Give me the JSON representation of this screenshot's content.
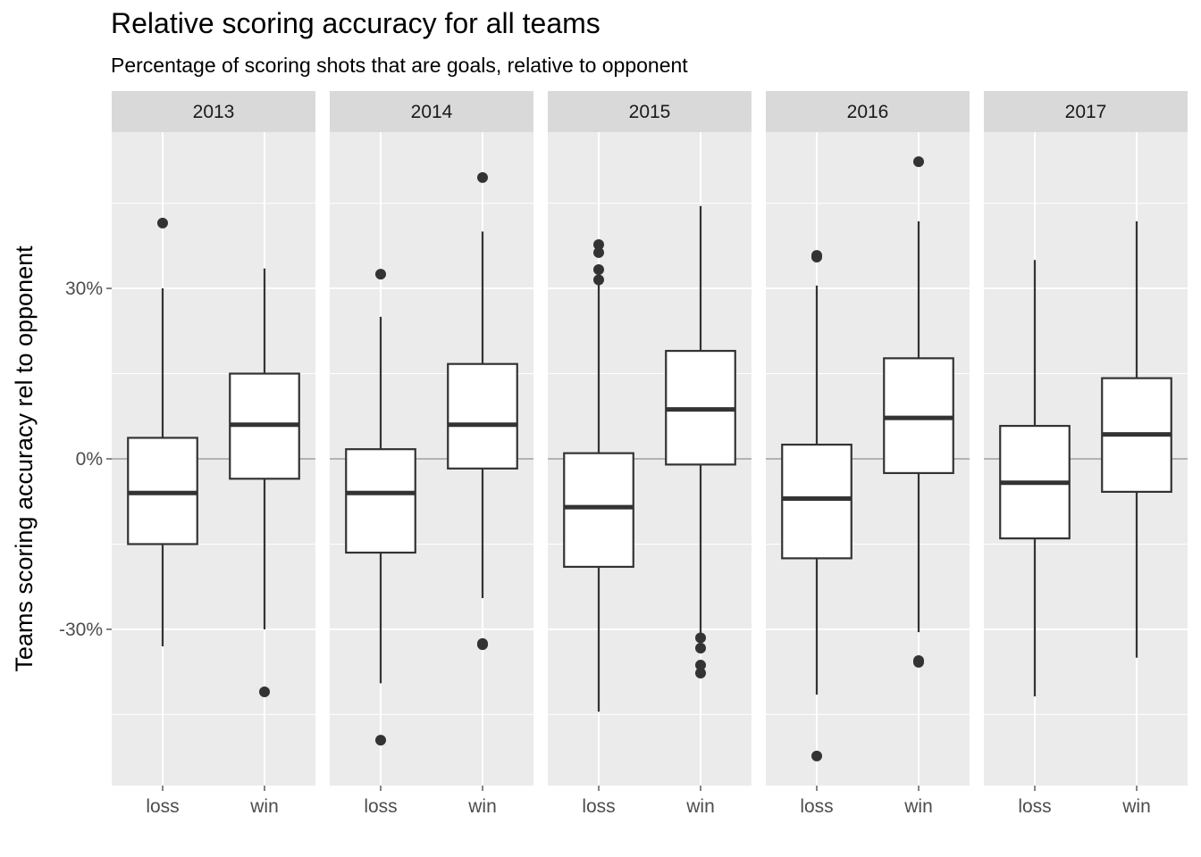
{
  "title": "Relative scoring accuracy for all teams",
  "subtitle": "Percentage of scoring shots that are goals, relative to opponent",
  "chart_data": {
    "type": "boxplot",
    "ylabel": "Teams scoring accuracy rel to opponent",
    "xlabel": "",
    "yticks": [
      {
        "value": -30,
        "label": "-30%"
      },
      {
        "value": 0,
        "label": "0%"
      },
      {
        "value": 30,
        "label": "30%"
      }
    ],
    "ylim": [
      -57.5,
      57.5
    ],
    "reference_line": 0,
    "grid": true,
    "categories": [
      "loss",
      "win"
    ],
    "facets": [
      {
        "label": "2013",
        "boxes": [
          {
            "category": "loss",
            "whisker_low": -33,
            "q1": -15,
            "median": -6,
            "q3": 3.7,
            "whisker_high": 30,
            "outliers": [
              41.5
            ]
          },
          {
            "category": "win",
            "whisker_low": -30,
            "q1": -3.5,
            "median": 6,
            "q3": 15,
            "whisker_high": 33.5,
            "outliers": [
              -41
            ]
          }
        ]
      },
      {
        "label": "2014",
        "boxes": [
          {
            "category": "loss",
            "whisker_low": -39.5,
            "q1": -16.5,
            "median": -6,
            "q3": 1.7,
            "whisker_high": 25,
            "outliers": [
              32.5,
              -49.5
            ]
          },
          {
            "category": "win",
            "whisker_low": -24.5,
            "q1": -1.7,
            "median": 6,
            "q3": 16.7,
            "whisker_high": 40,
            "outliers": [
              49.5,
              -32.5,
              -32.7
            ]
          }
        ]
      },
      {
        "label": "2015",
        "boxes": [
          {
            "category": "loss",
            "whisker_low": -44.5,
            "q1": -19,
            "median": -8.5,
            "q3": 1,
            "whisker_high": 31,
            "outliers": [
              37.7,
              36.3,
              33.3,
              31.5
            ]
          },
          {
            "category": "win",
            "whisker_low": -31,
            "q1": -1,
            "median": 8.7,
            "q3": 19,
            "whisker_high": 44.5,
            "outliers": [
              -31.5,
              -33.3,
              -36.3,
              -37.7
            ]
          }
        ]
      },
      {
        "label": "2016",
        "boxes": [
          {
            "category": "loss",
            "whisker_low": -41.5,
            "q1": -17.5,
            "median": -7,
            "q3": 2.5,
            "whisker_high": 30.5,
            "outliers": [
              35.5,
              35.8,
              -52.3
            ]
          },
          {
            "category": "win",
            "whisker_low": -30.5,
            "q1": -2.5,
            "median": 7.2,
            "q3": 17.7,
            "whisker_high": 41.8,
            "outliers": [
              52.3,
              -35.5,
              -35.8
            ]
          }
        ]
      },
      {
        "label": "2017",
        "boxes": [
          {
            "category": "loss",
            "whisker_low": -41.8,
            "q1": -14,
            "median": -4.2,
            "q3": 5.8,
            "whisker_high": 35,
            "outliers": []
          },
          {
            "category": "win",
            "whisker_low": -35,
            "q1": -5.8,
            "median": 4.3,
            "q3": 14.2,
            "whisker_high": 41.8,
            "outliers": []
          }
        ]
      }
    ]
  }
}
